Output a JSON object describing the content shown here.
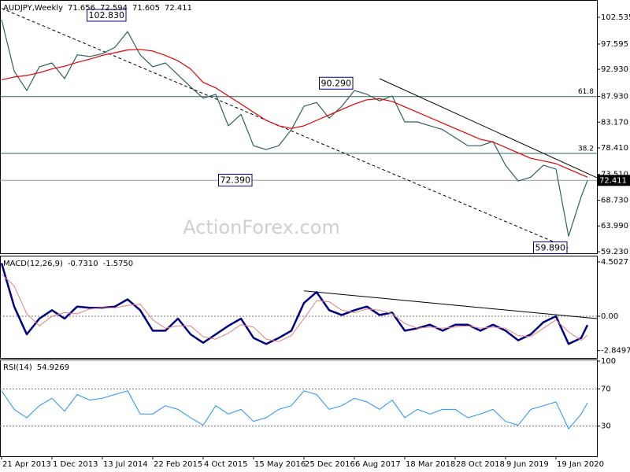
{
  "watermark": "ActionForex.com",
  "chart_data": [
    {
      "type": "line",
      "title": "AUDJPY,Weekly",
      "ohlc": [
        71.656,
        72.594,
        71.605,
        72.411
      ],
      "x": [
        "21 Apr 2013",
        "16 Jun 2013",
        "11 Aug 2013",
        "6 Oct 2013",
        "1 Dec 2013",
        "26 Jan 2014",
        "23 Mar 2014",
        "18 May 2014",
        "13 Jul 2014",
        "7 Sep 2014",
        "2 Nov 2014",
        "28 Dec 2014",
        "22 Feb 2015",
        "19 Apr 2015",
        "14 Jun 2015",
        "9 Aug 2015",
        "4 Oct 2015",
        "29 Nov 2015",
        "24 Jan 2016",
        "20 Mar 2016",
        "15 May 2016",
        "10 Jul 2016",
        "4 Sep 2016",
        "30 Oct 2016",
        "25 Dec 2016",
        "19 Feb 2017",
        "16 Apr 2017",
        "11 Jun 2017",
        "6 Aug 2017",
        "1 Oct 2017",
        "26 Nov 2017",
        "21 Jan 2018",
        "18 Mar 2018",
        "13 May 2018",
        "8 Jul 2018",
        "2 Sep 2018",
        "28 Oct 2018",
        "23 Dec 2018",
        "17 Feb 2019",
        "14 Apr 2019",
        "9 Jun 2019",
        "4 Aug 2019",
        "29 Sep 2019",
        "24 Nov 2019",
        "19 Jan 2020",
        "15 Mar 2020",
        "10 May 2020",
        "7 Jun 2020"
      ],
      "xlim": [
        "14 Apr 2013",
        "19 Jul 2020"
      ],
      "ylim": [
        58.94,
        105.73
      ],
      "yticks": [
        102.535,
        97.595,
        {
          "value": 92.93,
          "label": "92.930"
        },
        {
          "value": 87.93,
          "label": "87.930"
        },
        {
          "value": 83.17,
          "label": "83.170"
        },
        {
          "value": 78.41,
          "label": "78.410"
        },
        {
          "value": 73.51,
          "label": "73.510"
        },
        {
          "value": 68.73,
          "label": "68.730"
        },
        {
          "value": 63.99,
          "label": "63.990"
        },
        {
          "value": 59.23,
          "label": "59.230"
        }
      ],
      "series": [
        {
          "color": "#2f5f5f",
          "width": 1.2,
          "values": [
            102.1,
            92.6,
            89.0,
            93.4,
            94.1,
            91.2,
            95.6,
            95.3,
            95.8,
            97.0,
            99.9,
            95.6,
            93.4,
            94.1,
            91.9,
            89.7,
            87.6,
            88.3,
            82.5,
            84.6,
            78.8,
            78.1,
            78.8,
            81.8,
            86.1,
            86.8,
            83.9,
            86.1,
            89.0,
            88.3,
            87.1,
            88.0,
            83.2,
            83.2,
            82.5,
            81.8,
            80.3,
            78.8,
            78.8,
            79.6,
            75.2,
            72.3,
            73.0,
            75.2,
            74.5,
            62.1,
            69.4,
            72.411
          ]
        },
        {
          "color": "#e00000",
          "width": 1.2,
          "values": [
            91.0,
            91.5,
            91.8,
            92.3,
            93.0,
            93.5,
            94.2,
            94.8,
            95.5,
            96.0,
            96.5,
            96.6,
            96.3,
            95.5,
            94.5,
            93.0,
            90.5,
            89.5,
            88.0,
            86.5,
            85.0,
            83.5,
            82.5,
            82.0,
            82.5,
            83.5,
            84.5,
            85.5,
            86.5,
            87.3,
            87.5,
            87.0,
            86.0,
            85.0,
            84.0,
            83.0,
            82.0,
            81.0,
            80.0,
            79.5,
            78.5,
            77.5,
            76.5,
            76.0,
            75.5,
            74.5,
            73.5,
            73.0
          ]
        }
      ],
      "last": 72.411,
      "fib_levels": [
        {
          "label": "61.8",
          "value": 87.9
        },
        {
          "label": "38.2",
          "value": 77.4
        }
      ],
      "annotations": [
        {
          "label": "102.830",
          "value": 102.83,
          "x": "2 Nov 2014"
        },
        {
          "label": "90.290",
          "value": 90.29,
          "x": "6 Aug 2017"
        },
        {
          "label": "72.390",
          "value": 72.39,
          "x": "15 May 2016"
        },
        {
          "label": "59.890",
          "value": 59.89,
          "x": "15 Mar 2020"
        }
      ],
      "trendlines": [
        {
          "from": [
            "21 Apr 2013",
            104.2
          ],
          "to": [
            "15 Mar 2020",
            59.9
          ],
          "style": "dashed"
        },
        {
          "from": [
            "26 Nov 2017",
            91.2
          ],
          "to": [
            "19 Jul 2020",
            72.9
          ],
          "style": "solid"
        }
      ]
    },
    {
      "type": "line",
      "title": "MACD(12,26,9)",
      "header_values": [
        {
          "value": -0.731,
          "label": "-0.7310"
        },
        {
          "value": -1.575,
          "label": "-1.5750"
        }
      ],
      "ylim": [
        -3.46,
        5.02
      ],
      "yticks": [
        4.5027,
        {
          "value": 0,
          "label": "0.00"
        },
        -2.8497
      ],
      "levels": [
        0
      ],
      "series": [
        {
          "color": "#000080",
          "width": 2.5,
          "values": [
            4.4,
            0.8,
            -1.5,
            -0.2,
            0.5,
            -0.2,
            0.8,
            0.7,
            0.7,
            0.8,
            1.4,
            0.5,
            -1.2,
            -1.2,
            -0.2,
            -1.5,
            -2.2,
            -1.5,
            -0.8,
            -0.2,
            -1.8,
            -2.3,
            -1.8,
            -1.2,
            1.1,
            2.0,
            0.5,
            0.1,
            0.5,
            0.8,
            0.1,
            0.3,
            -1.2,
            -1.0,
            -0.7,
            -1.2,
            -0.7,
            -0.7,
            -1.2,
            -0.7,
            -1.2,
            -2.0,
            -1.5,
            -0.5,
            0.0,
            -2.3,
            -1.8,
            -0.731
          ]
        },
        {
          "color": "#e08080",
          "width": 1,
          "values": [
            3.5,
            2.5,
            0.2,
            -0.8,
            0.0,
            0.3,
            0.2,
            0.6,
            0.7,
            0.7,
            0.9,
            1.0,
            -0.3,
            -1.0,
            -0.8,
            -0.8,
            -1.7,
            -1.9,
            -1.4,
            -0.7,
            -0.9,
            -1.9,
            -2.1,
            -1.6,
            -0.2,
            1.3,
            1.2,
            0.5,
            0.3,
            0.6,
            0.5,
            0.2,
            -0.6,
            -1.0,
            -0.9,
            -1.0,
            -0.9,
            -0.8,
            -1.0,
            -0.9,
            -1.0,
            -1.6,
            -1.7,
            -1.0,
            -0.3,
            -1.3,
            -2.0,
            -1.575
          ]
        }
      ],
      "trendlines": [
        {
          "from": [
            "25 Dec 2016",
            2.1
          ],
          "to": [
            "19 Jul 2020",
            -0.2
          ],
          "style": "solid"
        }
      ]
    },
    {
      "type": "line",
      "title": "RSI(14)",
      "header_values": [
        54.9269
      ],
      "ylim": [
        -2.5,
        101.7
      ],
      "yticks": [
        100,
        70,
        30
      ],
      "levels": [
        70,
        30
      ],
      "series": [
        {
          "color": "#1e90ff",
          "width": 1,
          "values": [
            68,
            48,
            39,
            52,
            60,
            46,
            64,
            58,
            60,
            64,
            68,
            43,
            43,
            52,
            48,
            39,
            31,
            52,
            43,
            48,
            35,
            39,
            48,
            52,
            68,
            64,
            48,
            52,
            60,
            56,
            48,
            58,
            39,
            48,
            43,
            48,
            48,
            39,
            43,
            48,
            35,
            31,
            48,
            52,
            56,
            27,
            43,
            54.9269
          ]
        }
      ],
      "xticks": [
        "21 Apr 2013",
        "1 Dec 2013",
        "13 Jul 2014",
        "22 Feb 2015",
        "4 Oct 2015",
        "15 May 2016",
        "25 Dec 2016",
        "6 Aug 2017",
        "18 Mar 2018",
        "28 Oct 2018",
        "9 Jun 2019",
        "19 Jan 2020"
      ]
    }
  ]
}
